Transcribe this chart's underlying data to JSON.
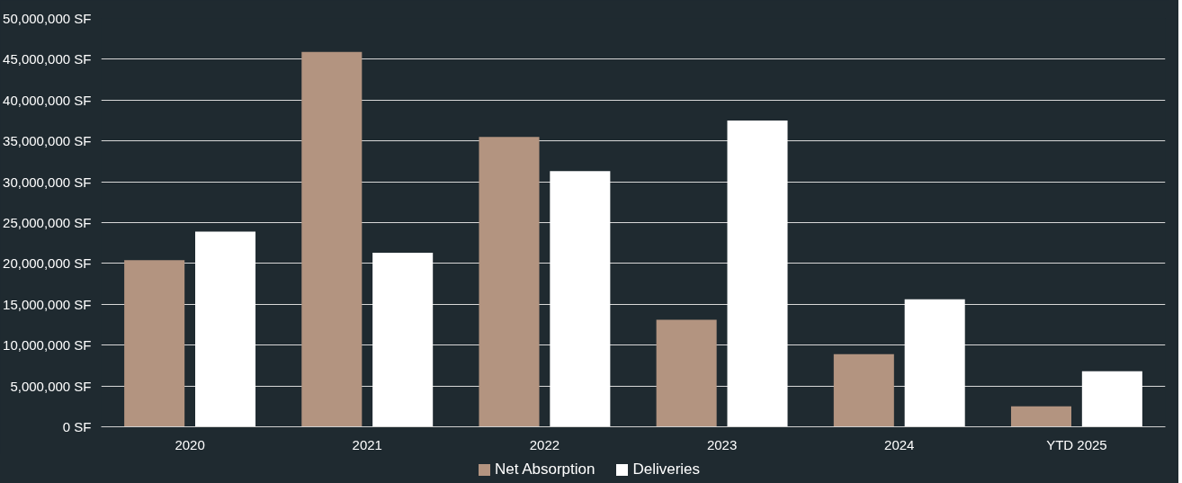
{
  "chart_data": {
    "type": "bar",
    "categories": [
      "2020",
      "2021",
      "2022",
      "2023",
      "2024",
      "YTD 2025"
    ],
    "series": [
      {
        "name": "Net Absorption",
        "color": "#b39480",
        "values": [
          20400000,
          45900000,
          35500000,
          13100000,
          8900000,
          2500000
        ]
      },
      {
        "name": "Deliveries",
        "color": "#ffffff",
        "values": [
          23900000,
          21300000,
          31300000,
          37500000,
          15600000,
          6800000
        ]
      }
    ],
    "ylim": [
      0,
      50000000
    ],
    "yticks": [
      {
        "value": 0,
        "label": "0 SF"
      },
      {
        "value": 5000000,
        "label": "5,000,000 SF"
      },
      {
        "value": 10000000,
        "label": "10,000,000 SF"
      },
      {
        "value": 15000000,
        "label": "15,000,000 SF"
      },
      {
        "value": 20000000,
        "label": "20,000,000 SF"
      },
      {
        "value": 25000000,
        "label": "25,000,000 SF"
      },
      {
        "value": 30000000,
        "label": "30,000,000 SF"
      },
      {
        "value": 35000000,
        "label": "35,000,000 SF"
      },
      {
        "value": 40000000,
        "label": "40,000,000 SF"
      },
      {
        "value": 45000000,
        "label": "45,000,000 SF"
      },
      {
        "value": 50000000,
        "label": "50,000,000 SF"
      }
    ],
    "grid": "y",
    "legend": "bottom"
  }
}
